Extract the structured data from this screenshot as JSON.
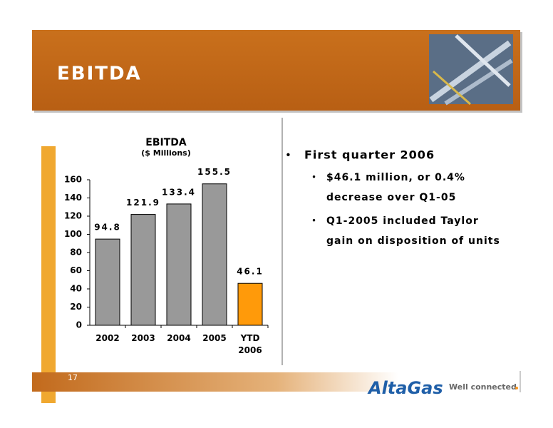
{
  "header": {
    "title": "EBITDA"
  },
  "chart_data": {
    "type": "bar",
    "title": "EBITDA",
    "subtitle": "($ Millions)",
    "categories": [
      "2002",
      "2003",
      "2004",
      "2005",
      "YTD 2006"
    ],
    "values": [
      94.8,
      121.9,
      133.4,
      155.5,
      46.1
    ],
    "colors": [
      "#999999",
      "#999999",
      "#999999",
      "#999999",
      "#ff9a0a"
    ],
    "ylim": [
      0,
      160
    ],
    "yticks": [
      0,
      20,
      40,
      60,
      80,
      100,
      120,
      140,
      160
    ],
    "grid": false
  },
  "bullets": [
    {
      "text": "First quarter 2006",
      "items": [
        [
          "$46.1 million, or 0.4%",
          "decrease over Q1-05"
        ],
        [
          "Q1-2005 included Taylor",
          "gain on disposition of units"
        ]
      ]
    }
  ],
  "footer": {
    "page": "17",
    "logo": "AltaGas",
    "tagline": "Well connected"
  }
}
